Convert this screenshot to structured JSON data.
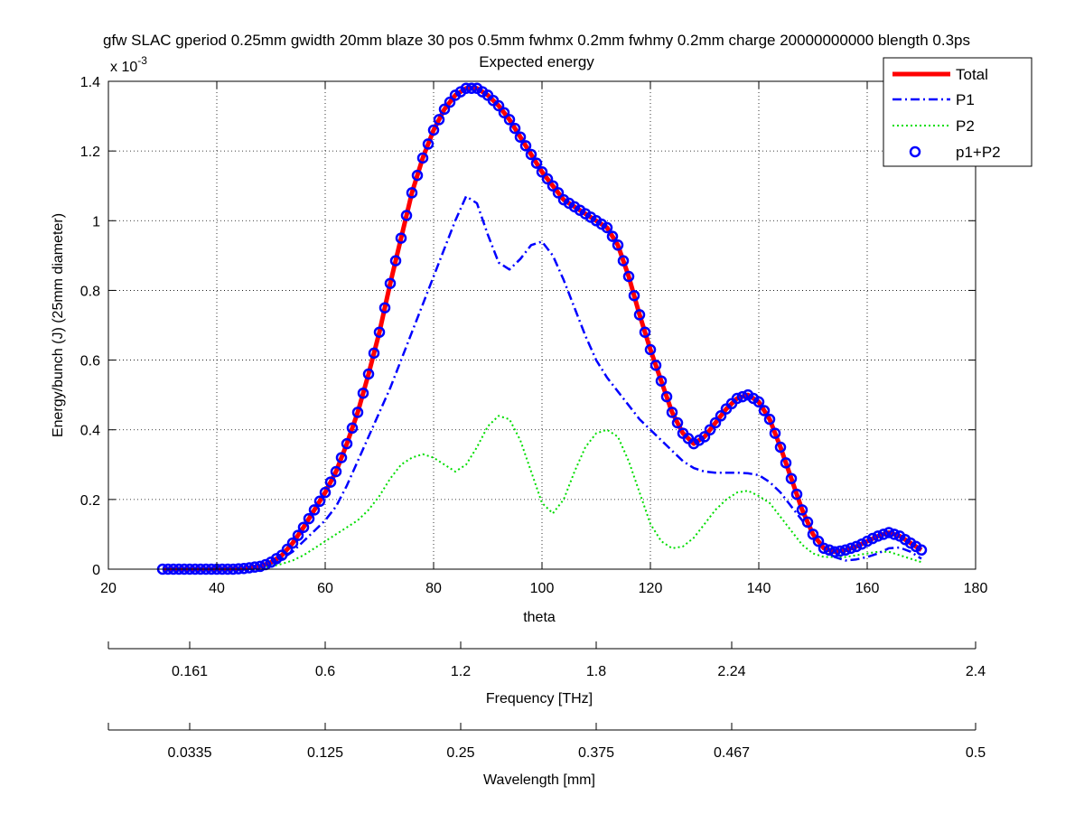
{
  "chart_data": {
    "type": "line",
    "title": "gfw SLAC gperiod 0.25mm gwidth 20mm blaze 30 pos 0.5mm fwhmx 0.2mm fwhmy 0.2mm charge 20000000000 blength 0.3ps",
    "subtitle": "Expected energy",
    "xlabel": "theta",
    "ylabel": "Energy/bunch (J)  (25mm diameter)",
    "y_exponent_label": "x 10",
    "y_exponent_power": "-3",
    "xlim": [
      20,
      180
    ],
    "ylim": [
      0,
      1.4
    ],
    "x_ticks": [
      "20",
      "40",
      "60",
      "80",
      "100",
      "120",
      "140",
      "160",
      "180"
    ],
    "y_ticks": [
      "0",
      "0.2",
      "0.4",
      "0.6",
      "0.8",
      "1",
      "1.2",
      "1.4"
    ],
    "grid": true,
    "legend_position": "top-right",
    "series": [
      {
        "name": "Total",
        "style": "solid",
        "color": "#ff0000",
        "x": [
          30,
          40,
          45,
          48,
          50,
          52,
          54,
          56,
          58,
          60,
          62,
          64,
          66,
          68,
          70,
          72,
          74,
          76,
          78,
          80,
          82,
          84,
          86,
          88,
          90,
          92,
          94,
          96,
          98,
          100,
          102,
          104,
          106,
          108,
          110,
          112,
          114,
          116,
          118,
          120,
          122,
          124,
          126,
          128,
          130,
          132,
          134,
          136,
          138,
          140,
          142,
          144,
          146,
          148,
          150,
          152,
          154,
          156,
          158,
          160,
          162,
          164,
          166,
          168,
          170
        ],
        "values": [
          0.0,
          0.0,
          0.002,
          0.008,
          0.02,
          0.04,
          0.075,
          0.12,
          0.17,
          0.22,
          0.28,
          0.36,
          0.45,
          0.56,
          0.68,
          0.82,
          0.95,
          1.08,
          1.18,
          1.26,
          1.32,
          1.36,
          1.38,
          1.38,
          1.36,
          1.33,
          1.29,
          1.24,
          1.19,
          1.14,
          1.1,
          1.06,
          1.04,
          1.02,
          1.0,
          0.98,
          0.93,
          0.84,
          0.73,
          0.63,
          0.54,
          0.45,
          0.39,
          0.36,
          0.38,
          0.42,
          0.46,
          0.49,
          0.5,
          0.48,
          0.43,
          0.35,
          0.26,
          0.17,
          0.1,
          0.06,
          0.05,
          0.055,
          0.065,
          0.08,
          0.095,
          0.105,
          0.095,
          0.075,
          0.055
        ]
      },
      {
        "name": "P1",
        "style": "dashdot",
        "color": "#0000ff",
        "x": [
          30,
          40,
          45,
          48,
          50,
          52,
          54,
          56,
          58,
          60,
          62,
          64,
          66,
          68,
          70,
          72,
          74,
          76,
          78,
          80,
          82,
          84,
          86,
          88,
          90,
          92,
          94,
          96,
          98,
          100,
          102,
          104,
          106,
          108,
          110,
          112,
          114,
          116,
          118,
          120,
          122,
          124,
          126,
          128,
          130,
          132,
          134,
          136,
          138,
          140,
          142,
          144,
          146,
          148,
          150,
          152,
          154,
          156,
          158,
          160,
          162,
          164,
          166,
          168,
          170
        ],
        "values": [
          0.0,
          0.0,
          0.002,
          0.006,
          0.015,
          0.03,
          0.05,
          0.08,
          0.11,
          0.14,
          0.18,
          0.24,
          0.31,
          0.38,
          0.45,
          0.52,
          0.6,
          0.68,
          0.76,
          0.84,
          0.92,
          1.0,
          1.07,
          1.05,
          0.96,
          0.88,
          0.86,
          0.89,
          0.93,
          0.94,
          0.9,
          0.83,
          0.75,
          0.67,
          0.6,
          0.55,
          0.51,
          0.47,
          0.43,
          0.4,
          0.37,
          0.34,
          0.31,
          0.29,
          0.28,
          0.277,
          0.277,
          0.277,
          0.275,
          0.27,
          0.25,
          0.22,
          0.18,
          0.14,
          0.1,
          0.06,
          0.035,
          0.025,
          0.028,
          0.035,
          0.045,
          0.06,
          0.062,
          0.05,
          0.03
        ]
      },
      {
        "name": "P2",
        "style": "dotted",
        "color": "#00dd00",
        "x": [
          30,
          40,
          45,
          48,
          50,
          52,
          54,
          56,
          58,
          60,
          62,
          64,
          66,
          68,
          70,
          72,
          74,
          76,
          78,
          80,
          82,
          84,
          86,
          88,
          90,
          92,
          94,
          96,
          98,
          100,
          102,
          104,
          106,
          108,
          110,
          112,
          114,
          116,
          118,
          120,
          122,
          124,
          126,
          128,
          130,
          132,
          134,
          136,
          138,
          140,
          142,
          144,
          146,
          148,
          150,
          152,
          154,
          156,
          158,
          160,
          162,
          164,
          166,
          168,
          170
        ],
        "values": [
          0.0,
          0.0,
          0.0,
          0.003,
          0.008,
          0.015,
          0.025,
          0.04,
          0.06,
          0.08,
          0.1,
          0.12,
          0.14,
          0.17,
          0.21,
          0.26,
          0.3,
          0.32,
          0.33,
          0.32,
          0.3,
          0.28,
          0.3,
          0.35,
          0.41,
          0.44,
          0.43,
          0.37,
          0.28,
          0.19,
          0.16,
          0.2,
          0.28,
          0.35,
          0.39,
          0.4,
          0.38,
          0.31,
          0.22,
          0.13,
          0.08,
          0.06,
          0.065,
          0.09,
          0.13,
          0.17,
          0.2,
          0.22,
          0.225,
          0.21,
          0.19,
          0.15,
          0.11,
          0.07,
          0.045,
          0.035,
          0.035,
          0.035,
          0.04,
          0.045,
          0.05,
          0.05,
          0.04,
          0.03,
          0.02
        ]
      },
      {
        "name": "p1+P2",
        "style": "circles",
        "color": "#0000ff",
        "x": [
          30,
          31,
          32,
          33,
          34,
          35,
          36,
          37,
          38,
          39,
          40,
          41,
          42,
          43,
          44,
          45,
          46,
          47,
          48,
          49,
          50,
          51,
          52,
          53,
          54,
          55,
          56,
          57,
          58,
          59,
          60,
          61,
          62,
          63,
          64,
          65,
          66,
          67,
          68,
          69,
          70,
          71,
          72,
          73,
          74,
          75,
          76,
          77,
          78,
          79,
          80,
          81,
          82,
          83,
          84,
          85,
          86,
          87,
          88,
          89,
          90,
          91,
          92,
          93,
          94,
          95,
          96,
          97,
          98,
          99,
          100,
          101,
          102,
          103,
          104,
          105,
          106,
          107,
          108,
          109,
          110,
          111,
          112,
          113,
          114,
          115,
          116,
          117,
          118,
          119,
          120,
          121,
          122,
          123,
          124,
          125,
          126,
          127,
          128,
          129,
          130,
          131,
          132,
          133,
          134,
          135,
          136,
          137,
          138,
          139,
          140,
          141,
          142,
          143,
          144,
          145,
          146,
          147,
          148,
          149,
          150,
          151,
          152,
          153,
          154,
          155,
          156,
          157,
          158,
          159,
          160,
          161,
          162,
          163,
          164,
          165,
          166,
          167,
          168,
          169,
          170
        ],
        "values": [
          0.0,
          0.0,
          0.0,
          0.0,
          0.0,
          0.0,
          0.0,
          0.0,
          0.0,
          0.0,
          0.0,
          0.0,
          0.0,
          0.0,
          0.001,
          0.002,
          0.004,
          0.006,
          0.008,
          0.013,
          0.02,
          0.03,
          0.04,
          0.057,
          0.075,
          0.097,
          0.12,
          0.145,
          0.17,
          0.195,
          0.22,
          0.25,
          0.28,
          0.32,
          0.36,
          0.405,
          0.45,
          0.505,
          0.56,
          0.62,
          0.68,
          0.75,
          0.82,
          0.885,
          0.95,
          1.015,
          1.08,
          1.13,
          1.18,
          1.22,
          1.26,
          1.29,
          1.32,
          1.34,
          1.36,
          1.37,
          1.38,
          1.38,
          1.38,
          1.37,
          1.36,
          1.345,
          1.33,
          1.31,
          1.29,
          1.265,
          1.24,
          1.215,
          1.19,
          1.165,
          1.14,
          1.12,
          1.1,
          1.08,
          1.06,
          1.05,
          1.04,
          1.03,
          1.02,
          1.01,
          1.0,
          0.99,
          0.98,
          0.955,
          0.93,
          0.885,
          0.84,
          0.785,
          0.73,
          0.68,
          0.63,
          0.585,
          0.54,
          0.495,
          0.45,
          0.42,
          0.39,
          0.375,
          0.36,
          0.37,
          0.38,
          0.4,
          0.42,
          0.44,
          0.46,
          0.475,
          0.49,
          0.495,
          0.5,
          0.49,
          0.48,
          0.455,
          0.43,
          0.39,
          0.35,
          0.305,
          0.26,
          0.215,
          0.17,
          0.135,
          0.1,
          0.08,
          0.06,
          0.055,
          0.05,
          0.052,
          0.055,
          0.06,
          0.065,
          0.072,
          0.08,
          0.088,
          0.095,
          0.1,
          0.105,
          0.1,
          0.095,
          0.085,
          0.075,
          0.065,
          0.055
        ]
      }
    ],
    "secondary_axes": [
      {
        "label": "Frequency [THz]",
        "tick_labels": [
          "0.161",
          "0.6",
          "1.2",
          "1.8",
          "2.24",
          "2.4"
        ],
        "tick_theta": [
          35,
          60,
          85,
          110,
          135,
          180
        ]
      },
      {
        "label": "Wavelength [mm]",
        "tick_labels": [
          "0.0335",
          "0.125",
          "0.25",
          "0.375",
          "0.467",
          "0.5"
        ],
        "tick_theta": [
          35,
          60,
          85,
          110,
          135,
          180
        ]
      }
    ]
  }
}
